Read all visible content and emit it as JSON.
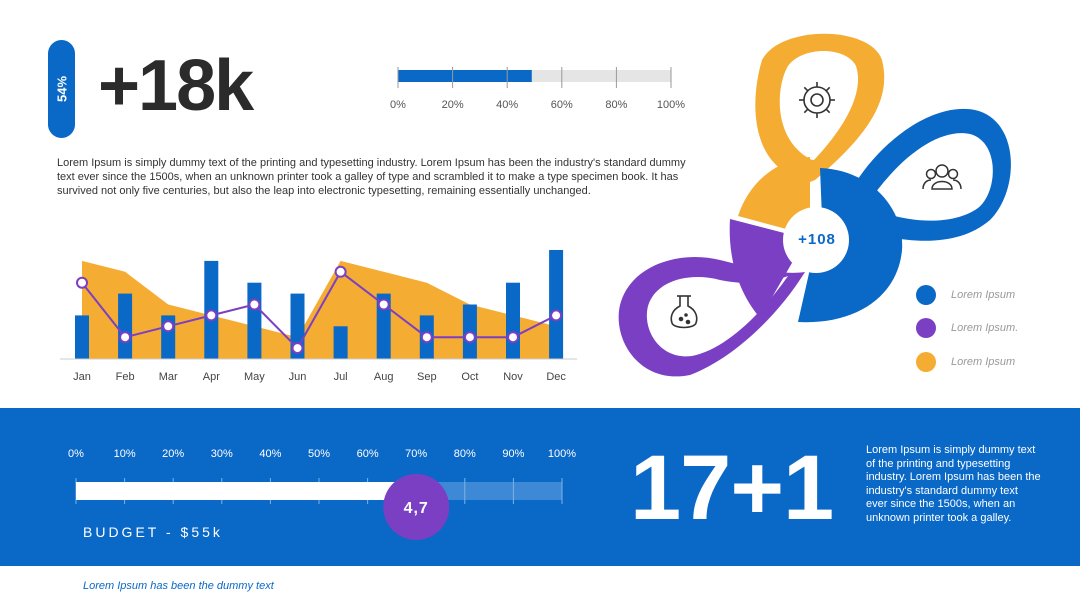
{
  "header": {
    "badge": "54%",
    "big_stat": "+18k",
    "paragraph": "Lorem Ipsum is simply dummy text of the printing and typesetting industry. Lorem Ipsum has been the industry's standard dummy text ever since the 1500s, when an unknown printer took a galley of type and scrambled it to make a type specimen book. It has survived not only five centuries, but also the leap into electronic typesetting, remaining essentially unchanged."
  },
  "top_progress": {
    "value_pct": 49,
    "ticks": [
      "0%",
      "20%",
      "40%",
      "60%",
      "80%",
      "100%"
    ]
  },
  "chart_data": {
    "type": "bar",
    "categories": [
      "Jan",
      "Feb",
      "Mar",
      "Apr",
      "May",
      "Jun",
      "Jul",
      "Aug",
      "Sep",
      "Oct",
      "Nov",
      "Dec"
    ],
    "ylim": [
      0,
      10
    ],
    "series": [
      {
        "values": [
          9,
          8,
          5,
          4,
          3,
          2,
          9,
          8,
          7,
          5,
          4,
          3
        ]
      },
      {
        "values": [
          4,
          6,
          4,
          9,
          7,
          6,
          3,
          6,
          4,
          5,
          7,
          10
        ]
      },
      {
        "values": [
          7,
          2,
          3,
          4,
          5,
          1,
          8,
          5,
          2,
          2,
          2,
          4
        ]
      }
    ],
    "colors": {
      "area": "#f5ac33",
      "bar": "#0a68c7",
      "line": "#7b3fc4"
    },
    "grid": false
  },
  "infographic": {
    "center_value": "+108",
    "icons": [
      "gear-icon",
      "team-icon",
      "flask-icon"
    ],
    "legend": [
      {
        "label": "Lorem Ipsum",
        "color": "#0a68c7"
      },
      {
        "label": "Lorem Ipsum.",
        "color": "#7b3fc4"
      },
      {
        "label": "Lorem Ipsum",
        "color": "#f5ac33"
      }
    ]
  },
  "budget": {
    "ticks": [
      "0%",
      "10%",
      "20%",
      "30%",
      "40%",
      "50%",
      "60%",
      "70%",
      "80%",
      "90%",
      "100%"
    ],
    "progress_pct": 70,
    "marker_label": "4,7",
    "label": "BUDGET - $55k"
  },
  "bottom": {
    "big_number": "17+1",
    "paragraph": "Lorem Ipsum is simply dummy text of the printing and typesetting industry. Lorem Ipsum has been the industry's standard dummy text ever since the 1500s, when an unknown printer took a galley.",
    "footer": "Lorem Ipsum has been the dummy text"
  },
  "colors": {
    "blue": "#0a68c7",
    "orange": "#f5ac33",
    "purple": "#7b3fc4"
  }
}
